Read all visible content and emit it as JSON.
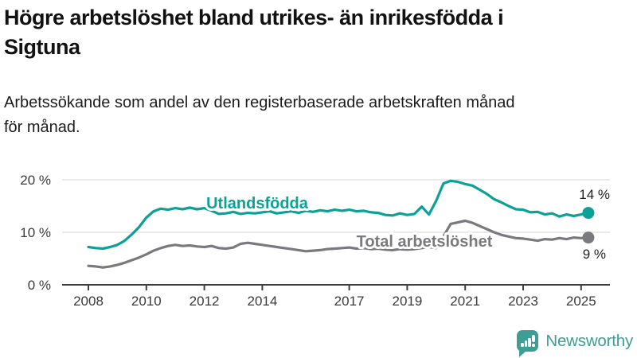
{
  "header": {
    "title_line1": "Högre arbetslöshet bland utrikes- än inrikesfödda i",
    "title_line2": "Sigtuna",
    "subtitle_line1": "Arbetssökande som andel av den registerbaserade arbetskraften månad",
    "subtitle_line2": "för månad."
  },
  "chart_data": {
    "type": "line",
    "title": "Högre arbetslöshet bland utrikes- än inrikesfödda i Sigtuna",
    "subtitle": "Arbetssökande som andel av den registerbaserade arbetskraften månad för månad.",
    "xlabel": "",
    "ylabel": "",
    "ylim": [
      0,
      20
    ],
    "grid": "horizontal",
    "legend_position": "inline-labels",
    "x_start": 2008,
    "x_step": 0.25,
    "y_axis": {
      "ticks": [
        {
          "value": 0,
          "label": "0 %"
        },
        {
          "value": 10,
          "label": "10 %"
        },
        {
          "value": 20,
          "label": "20 %"
        }
      ]
    },
    "x_axis": {
      "ticks": [
        {
          "value": 2008,
          "label": "2008"
        },
        {
          "value": 2010,
          "label": "2010"
        },
        {
          "value": 2012,
          "label": "2012"
        },
        {
          "value": 2014,
          "label": "2014"
        },
        {
          "value": 2017,
          "label": "2017"
        },
        {
          "value": 2019,
          "label": "2019"
        },
        {
          "value": 2021,
          "label": "2021"
        },
        {
          "value": 2023,
          "label": "2023"
        },
        {
          "value": 2025,
          "label": "2025"
        }
      ]
    },
    "series": [
      {
        "id": "total",
        "name": "Total arbetslöshet",
        "color": "#7b7980",
        "end_value": 9,
        "end_label": "9 %",
        "values": [
          3.6,
          3.5,
          3.3,
          3.5,
          3.8,
          4.2,
          4.7,
          5.2,
          5.8,
          6.5,
          7.0,
          7.4,
          7.6,
          7.4,
          7.5,
          7.3,
          7.2,
          7.4,
          7.0,
          6.9,
          7.1,
          7.8,
          8.0,
          7.8,
          7.6,
          7.4,
          7.2,
          7.0,
          6.8,
          6.6,
          6.4,
          6.5,
          6.6,
          6.8,
          6.9,
          7.0,
          7.1,
          6.9,
          7.0,
          6.8,
          6.9,
          6.7,
          6.6,
          6.8,
          6.7,
          6.8,
          7.0,
          7.2,
          7.0,
          9.2,
          11.6,
          11.9,
          12.2,
          11.8,
          11.2,
          10.6,
          10.0,
          9.5,
          9.2,
          8.9,
          8.8,
          8.6,
          8.4,
          8.7,
          8.6,
          8.9,
          8.7,
          9.0,
          8.9,
          9.0
        ]
      },
      {
        "id": "utland",
        "name": "Utlandsfödda",
        "color": "#0aa296",
        "end_value": 14,
        "end_label": "14 %",
        "values": [
          7.2,
          7.0,
          6.9,
          7.2,
          7.6,
          8.4,
          9.6,
          11.0,
          12.8,
          14.0,
          14.5,
          14.3,
          14.6,
          14.4,
          14.7,
          14.4,
          14.6,
          14.1,
          13.5,
          13.6,
          13.9,
          13.5,
          13.7,
          13.6,
          13.8,
          14.0,
          13.6,
          13.8,
          14.0,
          13.7,
          14.1,
          13.9,
          14.2,
          14.0,
          14.3,
          14.1,
          14.3,
          14.0,
          14.1,
          13.8,
          13.7,
          13.3,
          13.2,
          13.6,
          13.3,
          13.5,
          14.9,
          13.4,
          16.0,
          19.3,
          19.8,
          19.6,
          19.2,
          18.9,
          18.1,
          17.3,
          16.3,
          15.7,
          15.0,
          14.4,
          14.3,
          13.8,
          13.9,
          13.4,
          13.6,
          13.0,
          13.4,
          13.1,
          13.4,
          13.7
        ]
      }
    ]
  },
  "colors": {
    "utlandsfodda": "#0aa296",
    "total": "#7b7980",
    "axis_text": "#3a3a3a",
    "grid_line": "#e4e4e4",
    "axis_line": "#3f3f3f",
    "logo": "#3e9d95"
  },
  "footer": {
    "logo_text": "Newsworthy"
  }
}
